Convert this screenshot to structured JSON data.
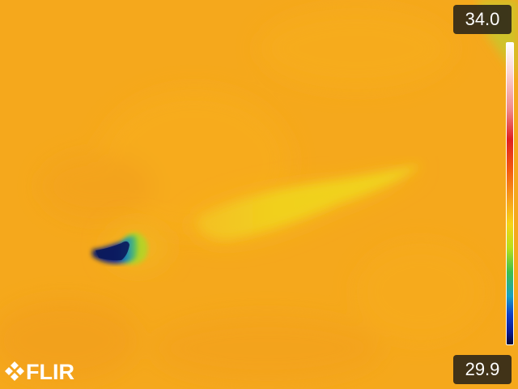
{
  "temperature_scale": {
    "max": "34.0",
    "min": "29.9"
  },
  "logo": {
    "text": "FLIR"
  }
}
